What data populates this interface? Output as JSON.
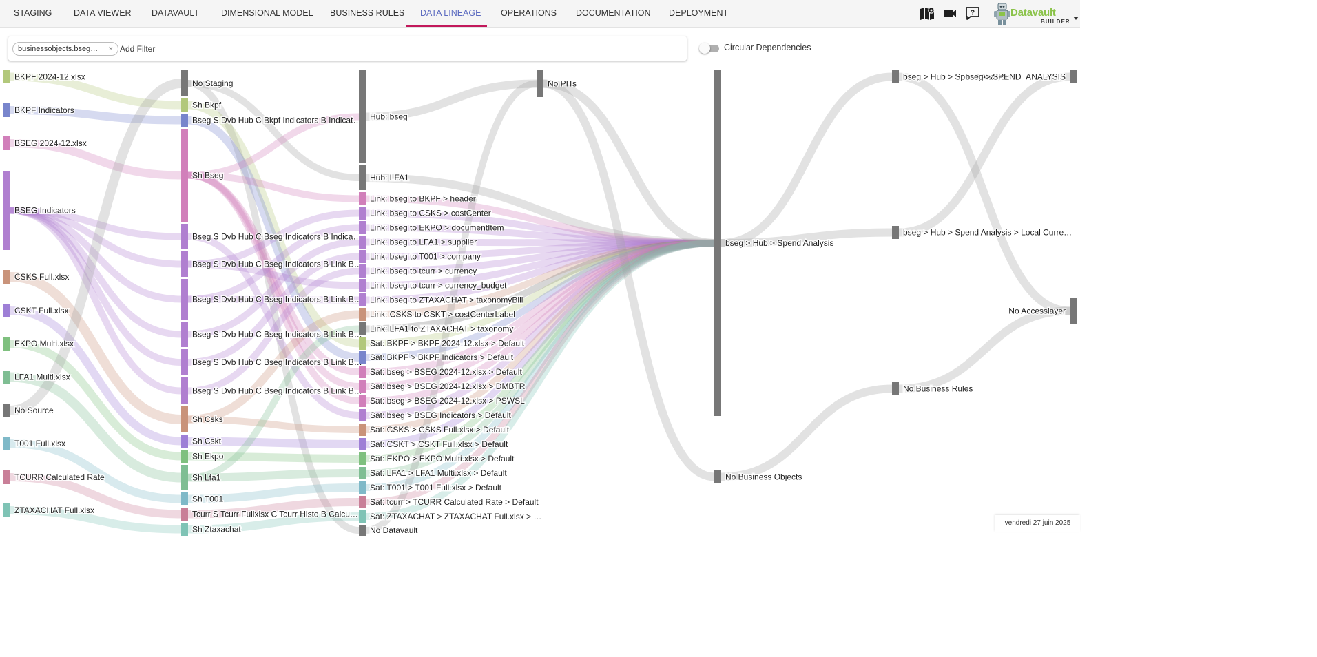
{
  "nav": {
    "tabs": [
      {
        "label": "STAGING"
      },
      {
        "label": "DATA VIEWER"
      },
      {
        "label": "DATAVAULT"
      },
      {
        "label": "DIMENSIONAL MODEL"
      },
      {
        "label": "BUSINESS RULES"
      },
      {
        "label": "DATA LINEAGE"
      },
      {
        "label": "OPERATIONS"
      },
      {
        "label": "DOCUMENTATION"
      },
      {
        "label": "DEPLOYMENT"
      }
    ],
    "active_tab": "DATA LINEAGE",
    "accent_color": "#5c6bc0",
    "underline_color": "#c2185b",
    "icons": [
      "book-map-icon",
      "video-camera-icon",
      "help-icon"
    ]
  },
  "brand": {
    "name": "Datavault",
    "sub": "BUILDER",
    "logo_icon": "robot-logo-icon",
    "menu_icon": "caret-down-icon",
    "color": "#8bc34a"
  },
  "filter": {
    "chip_label": "businessobjects.bseg…",
    "chip_close": "×",
    "placeholder": "Add Filter"
  },
  "toggle": {
    "label": "Circular Dependencies",
    "on": false
  },
  "footer": {
    "date": "vendredi 27 juin 2025"
  },
  "lineage": {
    "columns": [
      {
        "nodes": [
          {
            "label": "BKPF 2024-12.xlsx",
            "color": "#b2c87b"
          },
          {
            "label": "BKPF Indicators",
            "color": "#7885cc"
          },
          {
            "label": "BSEG 2024-12.xlsx",
            "color": "#d17fba"
          },
          {
            "label": "BSEG Indicators",
            "color": "#b07fd0"
          },
          {
            "label": "CSKS Full.xlsx",
            "color": "#c9937a"
          },
          {
            "label": "CSKT Full.xlsx",
            "color": "#9e7fd6"
          },
          {
            "label": "EKPO Multi.xlsx",
            "color": "#7fc07f"
          },
          {
            "label": "LFA1 Multi.xlsx",
            "color": "#7fbe93"
          },
          {
            "label": "No Source",
            "color": "#777777"
          },
          {
            "label": "T001 Full.xlsx",
            "color": "#7fb9c8"
          },
          {
            "label": "TCURR Calculated Rate",
            "color": "#c97f98"
          },
          {
            "label": "ZTAXACHAT Full.xlsx",
            "color": "#7fc3b5"
          }
        ]
      },
      {
        "nodes": [
          {
            "label": "No Staging",
            "color": "#777777"
          },
          {
            "label": "Sh Bkpf",
            "color": "#b2c87b"
          },
          {
            "label": "Bseg S Dvb Hub C Bkpf Indicators B Indicat…",
            "color": "#7885cc"
          },
          {
            "label": "Sh Bseg",
            "color": "#d17fba"
          },
          {
            "label": "Bseg S Dvb Hub C Bseg Indicators B Indica…",
            "color": "#b07fd0"
          },
          {
            "label": "Bseg S Dvb Hub C Bseg Indicators B Link B…",
            "color": "#b07fd0"
          },
          {
            "label": "Bseg S Dvb Hub C Bseg Indicators B Link B…",
            "color": "#b07fd0"
          },
          {
            "label": "Bseg S Dvb Hub C Bseg Indicators B Link B…",
            "color": "#b07fd0"
          },
          {
            "label": "Bseg S Dvb Hub C Bseg Indicators B Link B…",
            "color": "#b07fd0"
          },
          {
            "label": "Bseg S Dvb Hub C Bseg Indicators B Link B…",
            "color": "#b07fd0"
          },
          {
            "label": "Sh Csks",
            "color": "#c9937a"
          },
          {
            "label": "Sh Cskt",
            "color": "#9e7fd6"
          },
          {
            "label": "Sh Ekpo",
            "color": "#7fc07f"
          },
          {
            "label": "Sh Lfa1",
            "color": "#7fbe93"
          },
          {
            "label": "Sh T001",
            "color": "#7fb9c8"
          },
          {
            "label": "Tcurr S Tcurr Fullxlsx C Tcurr Histo B Calcu…",
            "color": "#c97f98"
          },
          {
            "label": "Sh Ztaxachat",
            "color": "#7fc3b5"
          }
        ]
      },
      {
        "nodes": [
          {
            "label": "Hub: bseg",
            "color": "#777777"
          },
          {
            "label": "Hub: LFA1",
            "color": "#777777"
          },
          {
            "label": "Link: bseg to BKPF > header",
            "color": "#d17fba"
          },
          {
            "label": "Link: bseg to CSKS > costCenter",
            "color": "#b07fd0"
          },
          {
            "label": "Link: bseg to EKPO > documentItem",
            "color": "#b07fd0"
          },
          {
            "label": "Link: bseg to LFA1 > supplier",
            "color": "#b07fd0"
          },
          {
            "label": "Link: bseg to T001 > company",
            "color": "#b07fd0"
          },
          {
            "label": "Link: bseg to tcurr > currency",
            "color": "#b07fd0"
          },
          {
            "label": "Link: bseg to tcurr > currency_budget",
            "color": "#b07fd0"
          },
          {
            "label": "Link: bseg to ZTAXACHAT > taxonomyBill",
            "color": "#b07fd0"
          },
          {
            "label": "Link: CSKS to CSKT > costCenterLabel",
            "color": "#c9937a"
          },
          {
            "label": "Link: LFA1 to ZTAXACHAT > taxonomy",
            "color": "#777777"
          },
          {
            "label": "Sat: BKPF > BKPF 2024-12.xlsx > Default",
            "color": "#b2c87b"
          },
          {
            "label": "Sat: BKPF > BKPF Indicators > Default",
            "color": "#7885cc"
          },
          {
            "label": "Sat: bseg > BSEG 2024-12.xlsx > Default",
            "color": "#d17fba"
          },
          {
            "label": "Sat: bseg > BSEG 2024-12.xlsx > DMBTR",
            "color": "#d17fba"
          },
          {
            "label": "Sat: bseg > BSEG 2024-12.xlsx > PSWSL",
            "color": "#d17fba"
          },
          {
            "label": "Sat: bseg > BSEG Indicators > Default",
            "color": "#b07fd0"
          },
          {
            "label": "Sat: CSKS > CSKS Full.xlsx > Default",
            "color": "#c9937a"
          },
          {
            "label": "Sat: CSKT > CSKT Full.xlsx > Default",
            "color": "#9e7fd6"
          },
          {
            "label": "Sat: EKPO > EKPO Multi.xlsx > Default",
            "color": "#7fc07f"
          },
          {
            "label": "Sat: LFA1 > LFA1 Multi.xlsx > Default",
            "color": "#7fbe93"
          },
          {
            "label": "Sat: T001 > T001 Full.xlsx > Default",
            "color": "#7fb9c8"
          },
          {
            "label": "Sat: tcurr > TCURR Calculated Rate > Default",
            "color": "#c97f98"
          },
          {
            "label": "Sat: ZTAXACHAT > ZTAXACHAT Full.xlsx > …",
            "color": "#7fc3b5"
          },
          {
            "label": "No Datavault",
            "color": "#777777"
          }
        ]
      },
      {
        "nodes": [
          {
            "label": "No PITs",
            "color": "#777777"
          }
        ]
      },
      {
        "nodes": [
          {
            "label": "bseg > Hub > Spend Analysis",
            "color": "#777777"
          },
          {
            "label": "No Business Objects",
            "color": "#777777"
          }
        ]
      },
      {
        "nodes": [
          {
            "label": "bseg > Hub > Spend Analysis",
            "color": "#777777"
          },
          {
            "label": "bseg > Hub > Spend Analysis > Local Curre…",
            "color": "#777777"
          },
          {
            "label": "No Business Rules",
            "color": "#777777"
          }
        ]
      },
      {
        "nodes": [
          {
            "label": "bseg > SPEND_ANALYSIS",
            "color": "#777777"
          },
          {
            "label": "No Accesslayer",
            "color": "#777777"
          }
        ]
      }
    ]
  }
}
